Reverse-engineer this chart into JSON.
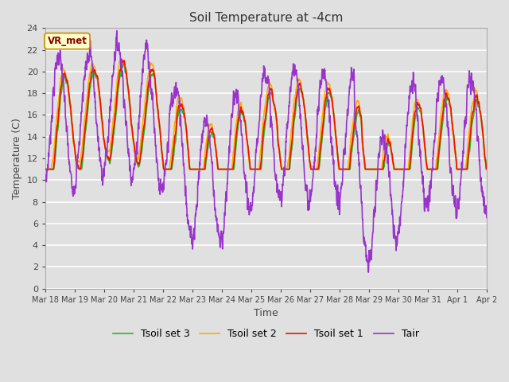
{
  "title": "Soil Temperature at -4cm",
  "xlabel": "Time",
  "ylabel": "Temperature (C)",
  "ylim": [
    0,
    24
  ],
  "yticks": [
    0,
    2,
    4,
    6,
    8,
    10,
    12,
    14,
    16,
    18,
    20,
    22,
    24
  ],
  "plot_bg_color": "#e0e0e0",
  "grid_color": "#ffffff",
  "legend_label": "VR_met",
  "series_colors": {
    "Tair": "#9933cc",
    "Tsoil_set1": "#ee1100",
    "Tsoil_set2": "#ffaa00",
    "Tsoil_set3": "#22bb22"
  },
  "n_days": 15,
  "start_day": 18,
  "start_month": 3,
  "xtick_labels": [
    "Mar 18",
    "Mar 19",
    "Mar 20",
    "Mar 21",
    "Mar 22",
    "Mar 23",
    "Mar 24",
    "Mar 25",
    "Mar 26",
    "Mar 27",
    "Mar 28",
    "Mar 29",
    "Mar 30",
    "Mar 31",
    "Apr 1",
    "Apr 2"
  ],
  "linewidth": 1.2
}
